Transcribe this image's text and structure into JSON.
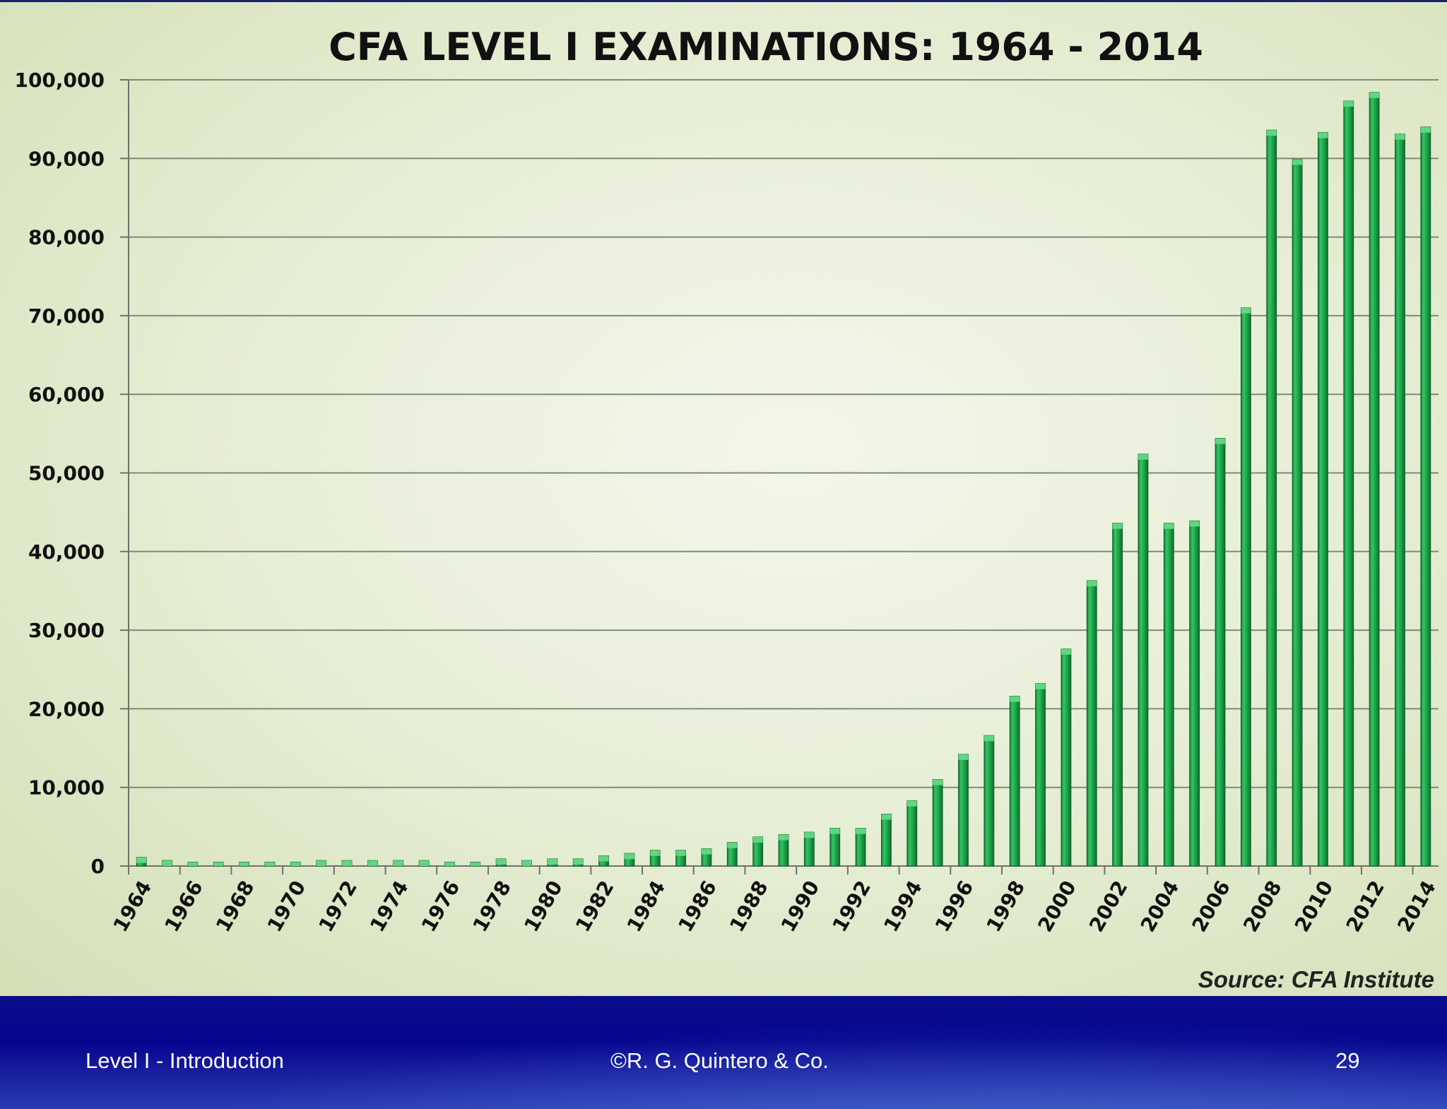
{
  "slide": {
    "footer_left": "Level I - Introduction",
    "footer_center": "©R. G. Quintero & Co.",
    "page_number": "29"
  },
  "colors": {
    "bar_fill": "#1faa4c",
    "bar_highlight": "#5fd67f",
    "bar_shadow": "#0f7a33",
    "footer_bg": "#07098f",
    "gridline": "#7f8a78"
  },
  "chart_data": {
    "type": "bar",
    "title": "CFA LEVEL I EXAMINATIONS:  1964 - 2014",
    "source": "Source:  CFA Institute",
    "xlabel": "",
    "ylabel": "",
    "ylim": [
      0,
      100000
    ],
    "yticks": [
      0,
      10000,
      20000,
      30000,
      40000,
      50000,
      60000,
      70000,
      80000,
      90000,
      100000
    ],
    "ytick_labels": [
      "0",
      "10,000",
      "20,000",
      "30,000",
      "40,000",
      "50,000",
      "60,000",
      "70,000",
      "80,000",
      "90,000",
      "100,000"
    ],
    "grid": true,
    "legend": "none",
    "xtick_labels": [
      "1964",
      "1966",
      "1968",
      "1970",
      "1972",
      "1974",
      "1976",
      "1978",
      "1980",
      "1982",
      "1984",
      "1986",
      "1988",
      "1990",
      "1992",
      "1994",
      "1996",
      "1998",
      "2000",
      "2002",
      "2004",
      "2006",
      "2008",
      "2010",
      "2012",
      "2014"
    ],
    "categories": [
      "1964",
      "1965",
      "1966",
      "1967",
      "1968",
      "1969",
      "1970",
      "1971",
      "1972",
      "1973",
      "1974",
      "1975",
      "1976",
      "1977",
      "1978",
      "1979",
      "1980",
      "1981",
      "1982",
      "1983",
      "1984",
      "1985",
      "1986",
      "1987",
      "1988",
      "1989",
      "1990",
      "1991",
      "1992",
      "1993",
      "1994",
      "1995",
      "1996",
      "1997",
      "1998",
      "1999",
      "2000",
      "2001",
      "2002",
      "2003",
      "2004",
      "2005",
      "2006",
      "2007",
      "2008",
      "2009",
      "2010",
      "2011",
      "2012",
      "2013",
      "2014"
    ],
    "values": [
      1100,
      700,
      500,
      500,
      500,
      500,
      500,
      700,
      700,
      700,
      700,
      700,
      500,
      500,
      900,
      700,
      900,
      900,
      1300,
      1600,
      2000,
      2000,
      2200,
      3000,
      3700,
      4000,
      4300,
      4800,
      4800,
      6600,
      8300,
      11000,
      14200,
      16600,
      21600,
      23200,
      27600,
      36300,
      43600,
      52400,
      43600,
      43900,
      54400,
      71000,
      93600,
      89900,
      93300,
      97300,
      98400,
      93100,
      94000
    ]
  }
}
